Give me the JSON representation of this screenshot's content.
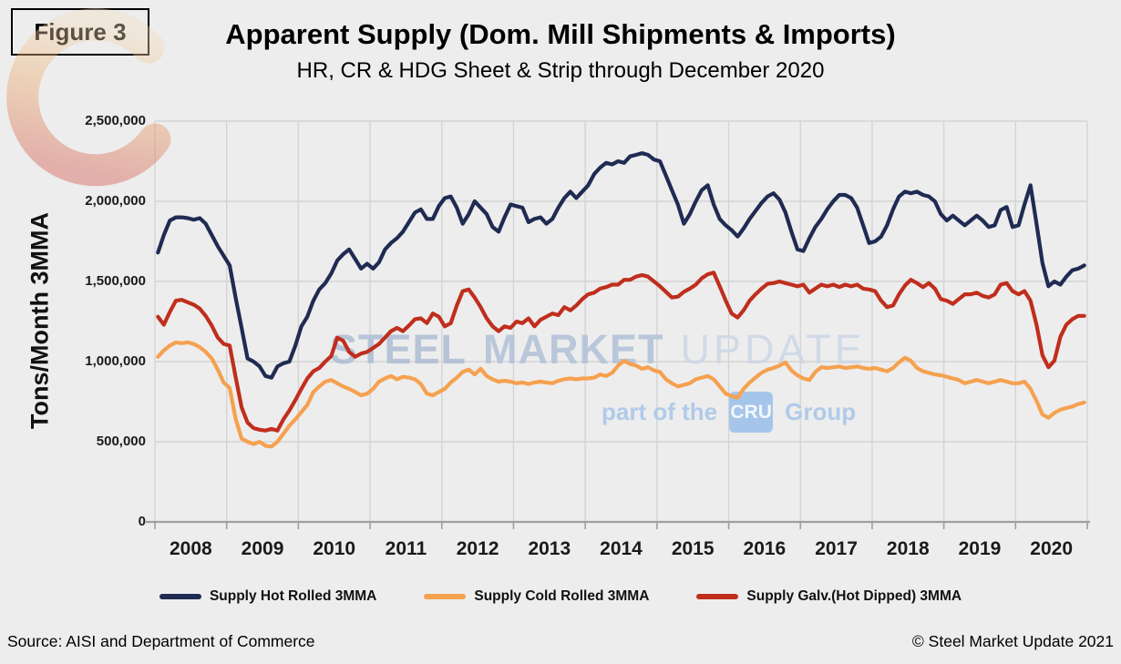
{
  "figure": {
    "label": "Figure 3"
  },
  "header": {
    "title": "Apparent Supply (Dom. Mill Shipments & Imports)",
    "subtitle": "HR, CR & HDG Sheet & Strip through December 2020"
  },
  "watermark": {
    "word1": "STEEL",
    "word2": "MARKET",
    "word3": "UPDATE",
    "tagline_prefix": "part of the",
    "tagline_box": "CRU",
    "tagline_suffix": "Group"
  },
  "footer": {
    "source": "Source: AISI and Department of Commerce",
    "copyright": "© Steel Market Update 2021"
  },
  "colors": {
    "background": "#EDEDED",
    "gridline": "#D4D4D4",
    "axis": "#9F9F9F",
    "hot_rolled": "#1F2B52",
    "cold_rolled": "#F5A14F",
    "galvanized": "#C02E1D",
    "watermark_blue": "#AEBDD4",
    "watermark_light_blue": "#B0CBE9"
  },
  "chart_data": {
    "type": "line",
    "title": "Apparent Supply (Dom. Mill Shipments & Imports)",
    "subtitle": "HR, CR & HDG Sheet & Strip through December 2020",
    "xlabel": "",
    "ylabel": "Tons/Month 3MMA",
    "ylim": [
      0,
      2500000
    ],
    "grid": true,
    "legend_position": "bottom",
    "frequency": "monthly",
    "x_start": "2008-01",
    "x_end": "2020-12",
    "y_ticks": [
      {
        "value": 0,
        "label": "0"
      },
      {
        "value": 500000,
        "label": "500,000"
      },
      {
        "value": 1000000,
        "label": "1,000,000"
      },
      {
        "value": 1500000,
        "label": "1,500,000"
      },
      {
        "value": 2000000,
        "label": "2,000,000"
      },
      {
        "value": 2500000,
        "label": "2,500,000"
      }
    ],
    "x_years": [
      "2008",
      "2009",
      "2010",
      "2011",
      "2012",
      "2013",
      "2014",
      "2015",
      "2016",
      "2017",
      "2018",
      "2019",
      "2020"
    ],
    "series": [
      {
        "name": "Supply Hot Rolled 3MMA",
        "color": "#1F2B52",
        "values": [
          1680000,
          1790000,
          1880000,
          1900000,
          1900000,
          1895000,
          1885000,
          1895000,
          1860000,
          1790000,
          1720000,
          1660000,
          1600000,
          1400000,
          1210000,
          1020000,
          1000000,
          970000,
          910000,
          900000,
          970000,
          990000,
          1000000,
          1100000,
          1220000,
          1280000,
          1380000,
          1450000,
          1490000,
          1550000,
          1630000,
          1670000,
          1700000,
          1640000,
          1580000,
          1610000,
          1580000,
          1620000,
          1700000,
          1740000,
          1770000,
          1810000,
          1870000,
          1930000,
          1950000,
          1890000,
          1890000,
          1970000,
          2020000,
          2030000,
          1960000,
          1860000,
          1920000,
          2000000,
          1960000,
          1920000,
          1840000,
          1810000,
          1900000,
          1980000,
          1970000,
          1960000,
          1870000,
          1890000,
          1900000,
          1860000,
          1890000,
          1960000,
          2020000,
          2060000,
          2020000,
          2060000,
          2100000,
          2170000,
          2210000,
          2240000,
          2230000,
          2250000,
          2240000,
          2280000,
          2290000,
          2300000,
          2290000,
          2260000,
          2250000,
          2160000,
          2070000,
          1980000,
          1860000,
          1920000,
          2000000,
          2070000,
          2100000,
          1980000,
          1890000,
          1850000,
          1820000,
          1780000,
          1830000,
          1890000,
          1940000,
          1990000,
          2030000,
          2050000,
          2010000,
          1930000,
          1810000,
          1700000,
          1690000,
          1770000,
          1840000,
          1890000,
          1950000,
          2000000,
          2040000,
          2040000,
          2020000,
          1960000,
          1850000,
          1740000,
          1750000,
          1780000,
          1850000,
          1950000,
          2030000,
          2060000,
          2050000,
          2060000,
          2040000,
          2030000,
          2000000,
          1920000,
          1880000,
          1910000,
          1880000,
          1850000,
          1880000,
          1910000,
          1880000,
          1840000,
          1850000,
          1945000,
          1965000,
          1840000,
          1850000,
          1980000,
          2100000,
          1860000,
          1615000,
          1470000,
          1500000,
          1480000,
          1530000,
          1570000,
          1580000,
          1600000
        ]
      },
      {
        "name": "Supply Cold Rolled 3MMA",
        "color": "#F5A14F",
        "values": [
          1030000,
          1070000,
          1100000,
          1120000,
          1115000,
          1120000,
          1110000,
          1090000,
          1060000,
          1020000,
          950000,
          870000,
          835000,
          645000,
          520000,
          500000,
          485000,
          500000,
          475000,
          470000,
          500000,
          550000,
          600000,
          640000,
          685000,
          730000,
          810000,
          845000,
          875000,
          885000,
          865000,
          845000,
          830000,
          810000,
          790000,
          800000,
          830000,
          875000,
          895000,
          910000,
          890000,
          905000,
          900000,
          890000,
          860000,
          800000,
          790000,
          810000,
          830000,
          870000,
          900000,
          935000,
          950000,
          920000,
          955000,
          910000,
          890000,
          875000,
          880000,
          875000,
          865000,
          870000,
          860000,
          870000,
          875000,
          870000,
          865000,
          880000,
          890000,
          895000,
          890000,
          895000,
          895000,
          900000,
          920000,
          910000,
          930000,
          975000,
          1005000,
          985000,
          975000,
          955000,
          965000,
          945000,
          935000,
          890000,
          865000,
          845000,
          855000,
          865000,
          890000,
          900000,
          910000,
          890000,
          845000,
          800000,
          785000,
          775000,
          830000,
          870000,
          900000,
          930000,
          950000,
          960000,
          975000,
          995000,
          945000,
          915000,
          895000,
          885000,
          935000,
          965000,
          960000,
          965000,
          970000,
          960000,
          965000,
          970000,
          960000,
          955000,
          960000,
          950000,
          940000,
          960000,
          995000,
          1025000,
          1005000,
          960000,
          940000,
          930000,
          920000,
          915000,
          905000,
          895000,
          885000,
          865000,
          875000,
          885000,
          875000,
          865000,
          875000,
          885000,
          875000,
          865000,
          865000,
          875000,
          830000,
          755000,
          670000,
          650000,
          680000,
          700000,
          710000,
          720000,
          735000,
          745000
        ]
      },
      {
        "name": "Supply Galv.(Hot Dipped) 3MMA",
        "color": "#C02E1D",
        "values": [
          1280000,
          1230000,
          1310000,
          1380000,
          1385000,
          1370000,
          1355000,
          1330000,
          1285000,
          1225000,
          1150000,
          1110000,
          1100000,
          905000,
          715000,
          620000,
          585000,
          575000,
          570000,
          580000,
          570000,
          640000,
          695000,
          760000,
          830000,
          895000,
          940000,
          960000,
          1000000,
          1035000,
          1150000,
          1130000,
          1060000,
          1030000,
          1050000,
          1060000,
          1085000,
          1110000,
          1150000,
          1190000,
          1210000,
          1190000,
          1225000,
          1265000,
          1270000,
          1240000,
          1300000,
          1280000,
          1220000,
          1240000,
          1350000,
          1440000,
          1450000,
          1400000,
          1340000,
          1270000,
          1220000,
          1190000,
          1220000,
          1210000,
          1250000,
          1240000,
          1270000,
          1220000,
          1260000,
          1280000,
          1300000,
          1290000,
          1340000,
          1320000,
          1350000,
          1390000,
          1420000,
          1430000,
          1455000,
          1465000,
          1480000,
          1480000,
          1510000,
          1510000,
          1530000,
          1540000,
          1530000,
          1500000,
          1470000,
          1435000,
          1400000,
          1405000,
          1435000,
          1455000,
          1480000,
          1520000,
          1545000,
          1555000,
          1470000,
          1380000,
          1300000,
          1275000,
          1320000,
          1380000,
          1420000,
          1455000,
          1485000,
          1490000,
          1500000,
          1490000,
          1480000,
          1470000,
          1480000,
          1430000,
          1455000,
          1480000,
          1470000,
          1480000,
          1465000,
          1480000,
          1470000,
          1480000,
          1455000,
          1450000,
          1440000,
          1380000,
          1340000,
          1350000,
          1420000,
          1475000,
          1510000,
          1490000,
          1465000,
          1490000,
          1455000,
          1390000,
          1380000,
          1360000,
          1390000,
          1420000,
          1420000,
          1430000,
          1410000,
          1400000,
          1420000,
          1480000,
          1490000,
          1440000,
          1420000,
          1440000,
          1380000,
          1230000,
          1040000,
          965000,
          1005000,
          1155000,
          1230000,
          1265000,
          1285000,
          1285000
        ]
      }
    ]
  }
}
